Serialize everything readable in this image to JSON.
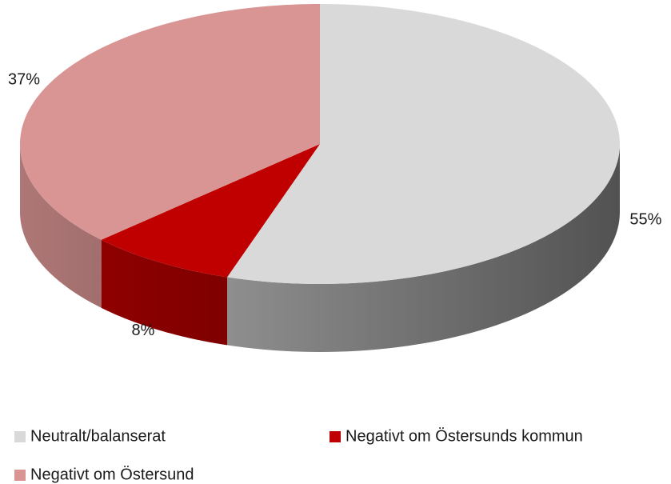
{
  "chart_data": {
    "type": "pie",
    "style": "3d",
    "categories": [
      "Neutralt/balanserat",
      "Negativt om Östersunds kommun",
      "Negativt om Östersund"
    ],
    "values": [
      55,
      8,
      37
    ],
    "value_labels": [
      "55%",
      "8%",
      "37%"
    ],
    "colors": [
      "#d9d9d9",
      "#c00000",
      "#d99594"
    ],
    "legend": "bottom"
  }
}
